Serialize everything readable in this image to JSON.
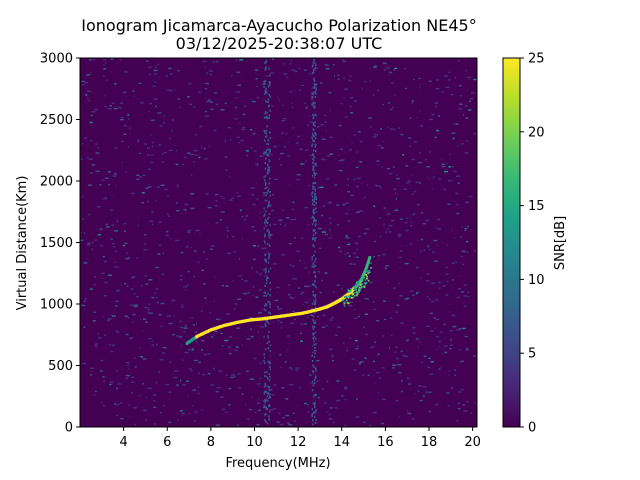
{
  "chart_data": {
    "type": "heatmap",
    "title": "Ionogram Jicamarca-Ayacucho Polarization NE45°",
    "subtitle": "03/12/2025-20:38:07 UTC",
    "xlabel": "Frequency(MHz)",
    "ylabel": "Virtual Distance(Km)",
    "xlim": [
      2.0,
      20.2
    ],
    "ylim": [
      0,
      3000
    ],
    "xticks": [
      4,
      6,
      8,
      10,
      12,
      14,
      16,
      18,
      20
    ],
    "yticks": [
      0,
      500,
      1000,
      1500,
      2000,
      2500,
      3000
    ],
    "colorbar": {
      "label": "SNR[dB]",
      "range": [
        0,
        25
      ],
      "ticks": [
        0,
        5,
        10,
        15,
        20,
        25
      ],
      "colormap": [
        "#440154",
        "#482878",
        "#3e4989",
        "#31688e",
        "#26828e",
        "#1f9e89",
        "#35b779",
        "#6ece58",
        "#b5de2b",
        "#fde725"
      ]
    },
    "background_snr_db": 1,
    "noise_bands_mhz": [
      10.4,
      10.7,
      12.6,
      12.8
    ],
    "trace": {
      "description_points_mhz_km": [
        [
          6.9,
          680
        ],
        [
          7.4,
          740
        ],
        [
          8.0,
          790
        ],
        [
          8.6,
          825
        ],
        [
          9.2,
          850
        ],
        [
          9.8,
          870
        ],
        [
          10.4,
          880
        ],
        [
          11.0,
          895
        ],
        [
          11.6,
          910
        ],
        [
          12.2,
          925
        ],
        [
          12.8,
          950
        ],
        [
          13.3,
          975
        ],
        [
          13.7,
          1010
        ],
        [
          14.0,
          1040
        ],
        [
          14.3,
          1080
        ],
        [
          14.6,
          1130
        ],
        [
          14.9,
          1200
        ],
        [
          15.1,
          1280
        ],
        [
          15.3,
          1390
        ]
      ],
      "snr_db": 25
    }
  }
}
